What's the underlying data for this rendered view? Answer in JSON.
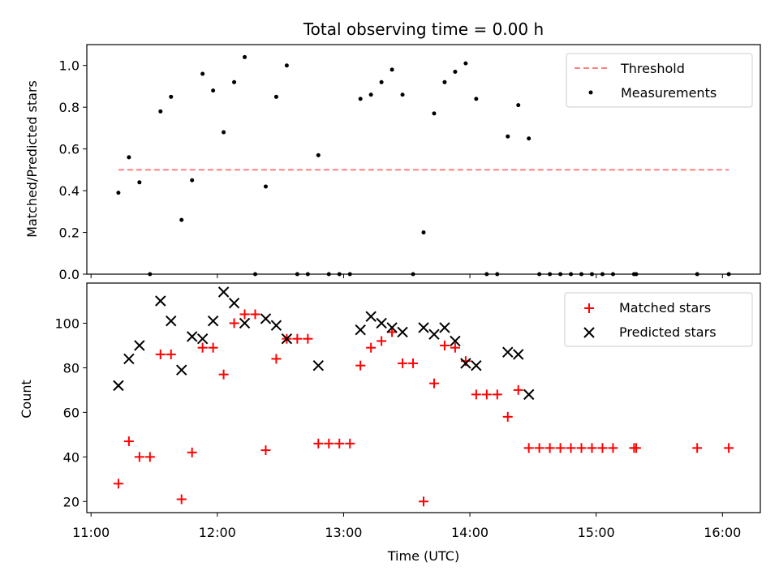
{
  "chart_data": [
    {
      "type": "scatter",
      "title": "Total observing time = 0.00 h",
      "xlabel": "",
      "ylabel": "Matched/Predicted stars",
      "xlim": [
        "10:58",
        "16:18"
      ],
      "ylim": [
        0,
        1.1
      ],
      "yticks": [
        "0.0",
        "0.2",
        "0.4",
        "0.6",
        "0.8",
        "1.0"
      ],
      "grid": false,
      "legend_position": "top-right",
      "threshold": {
        "name": "Threshold",
        "value": 0.5,
        "x_range": [
          "11:13",
          "16:03"
        ],
        "color": "#ff8080"
      },
      "series": [
        {
          "name": "Measurements",
          "color": "#000000",
          "x": [
            "11:13",
            "11:18",
            "11:23",
            "11:28",
            "11:33",
            "11:38",
            "11:43",
            "11:48",
            "11:53",
            "11:58",
            "12:03",
            "12:08",
            "12:13",
            "12:18",
            "12:23",
            "12:28",
            "12:33",
            "12:38",
            "12:43",
            "12:48",
            "12:53",
            "12:58",
            "13:03",
            "13:08",
            "13:13",
            "13:18",
            "13:23",
            "13:28",
            "13:33",
            "13:38",
            "13:43",
            "13:48",
            "13:53",
            "13:58",
            "14:03",
            "14:08",
            "14:13",
            "14:18",
            "14:23",
            "14:28",
            "14:33",
            "14:38",
            "14:43",
            "14:48",
            "14:53",
            "14:58",
            "15:03",
            "15:08",
            "15:18",
            "15:19",
            "15:48",
            "16:03"
          ],
          "y": [
            0.39,
            0.56,
            0.44,
            0.0,
            0.78,
            0.85,
            0.26,
            0.45,
            0.96,
            0.88,
            0.68,
            0.92,
            1.04,
            0.0,
            0.42,
            0.85,
            1.0,
            0.0,
            0.0,
            0.57,
            0.0,
            0.0,
            0.0,
            0.84,
            0.86,
            0.92,
            0.98,
            0.86,
            0.0,
            0.2,
            0.77,
            0.92,
            0.97,
            1.01,
            0.84,
            0.0,
            0.0,
            0.66,
            0.81,
            0.65,
            0.0,
            0.0,
            0.0,
            0.0,
            0.0,
            0.0,
            0.0,
            0.0,
            0.0,
            0.0,
            0.0,
            0.0
          ]
        }
      ]
    },
    {
      "type": "scatter",
      "title": "",
      "xlabel": "Time (UTC)",
      "ylabel": "Count",
      "xlim": [
        "10:58",
        "16:18"
      ],
      "ylim": [
        15,
        118
      ],
      "xticks": [
        "11:00",
        "12:00",
        "13:00",
        "14:00",
        "15:00",
        "16:00"
      ],
      "yticks": [
        "20",
        "40",
        "60",
        "80",
        "100"
      ],
      "grid": false,
      "legend_position": "top-right",
      "series": [
        {
          "name": "Matched stars",
          "color": "#ff0000",
          "marker": "plus",
          "x": [
            "11:13",
            "11:18",
            "11:23",
            "11:28",
            "11:33",
            "11:38",
            "11:43",
            "11:48",
            "11:53",
            "11:58",
            "12:03",
            "12:08",
            "12:13",
            "12:18",
            "12:23",
            "12:28",
            "12:33",
            "12:38",
            "12:43",
            "12:48",
            "12:53",
            "12:58",
            "13:03",
            "13:08",
            "13:13",
            "13:18",
            "13:23",
            "13:28",
            "13:33",
            "13:38",
            "13:43",
            "13:48",
            "13:53",
            "13:58",
            "14:03",
            "14:08",
            "14:13",
            "14:18",
            "14:23",
            "14:28",
            "14:33",
            "14:38",
            "14:43",
            "14:48",
            "14:53",
            "14:58",
            "15:03",
            "15:08",
            "15:18",
            "15:19",
            "15:48",
            "16:03"
          ],
          "y": [
            28,
            47,
            40,
            40,
            86,
            86,
            21,
            42,
            89,
            89,
            77,
            100,
            104,
            104,
            43,
            84,
            93,
            93,
            93,
            46,
            46,
            46,
            46,
            81,
            89,
            92,
            96,
            82,
            82,
            20,
            73,
            90,
            89,
            83,
            68,
            68,
            68,
            58,
            70,
            44,
            44,
            44,
            44,
            44,
            44,
            44,
            44,
            44,
            44,
            44,
            44,
            44
          ]
        },
        {
          "name": "Predicted stars",
          "color": "#000000",
          "marker": "x",
          "x": [
            "11:13",
            "11:18",
            "11:23",
            "11:33",
            "11:38",
            "11:43",
            "11:48",
            "11:53",
            "11:58",
            "12:03",
            "12:08",
            "12:13",
            "12:23",
            "12:28",
            "12:33",
            "12:48",
            "13:08",
            "13:13",
            "13:18",
            "13:23",
            "13:28",
            "13:38",
            "13:43",
            "13:48",
            "13:53",
            "13:58",
            "14:03",
            "14:18",
            "14:23",
            "14:28"
          ],
          "y": [
            72,
            84,
            90,
            110,
            101,
            79,
            94,
            93,
            101,
            114,
            109,
            100,
            102,
            99,
            93,
            81,
            97,
            103,
            100,
            98,
            96,
            98,
            95,
            98,
            92,
            82,
            81,
            87,
            86,
            68
          ]
        }
      ]
    }
  ]
}
